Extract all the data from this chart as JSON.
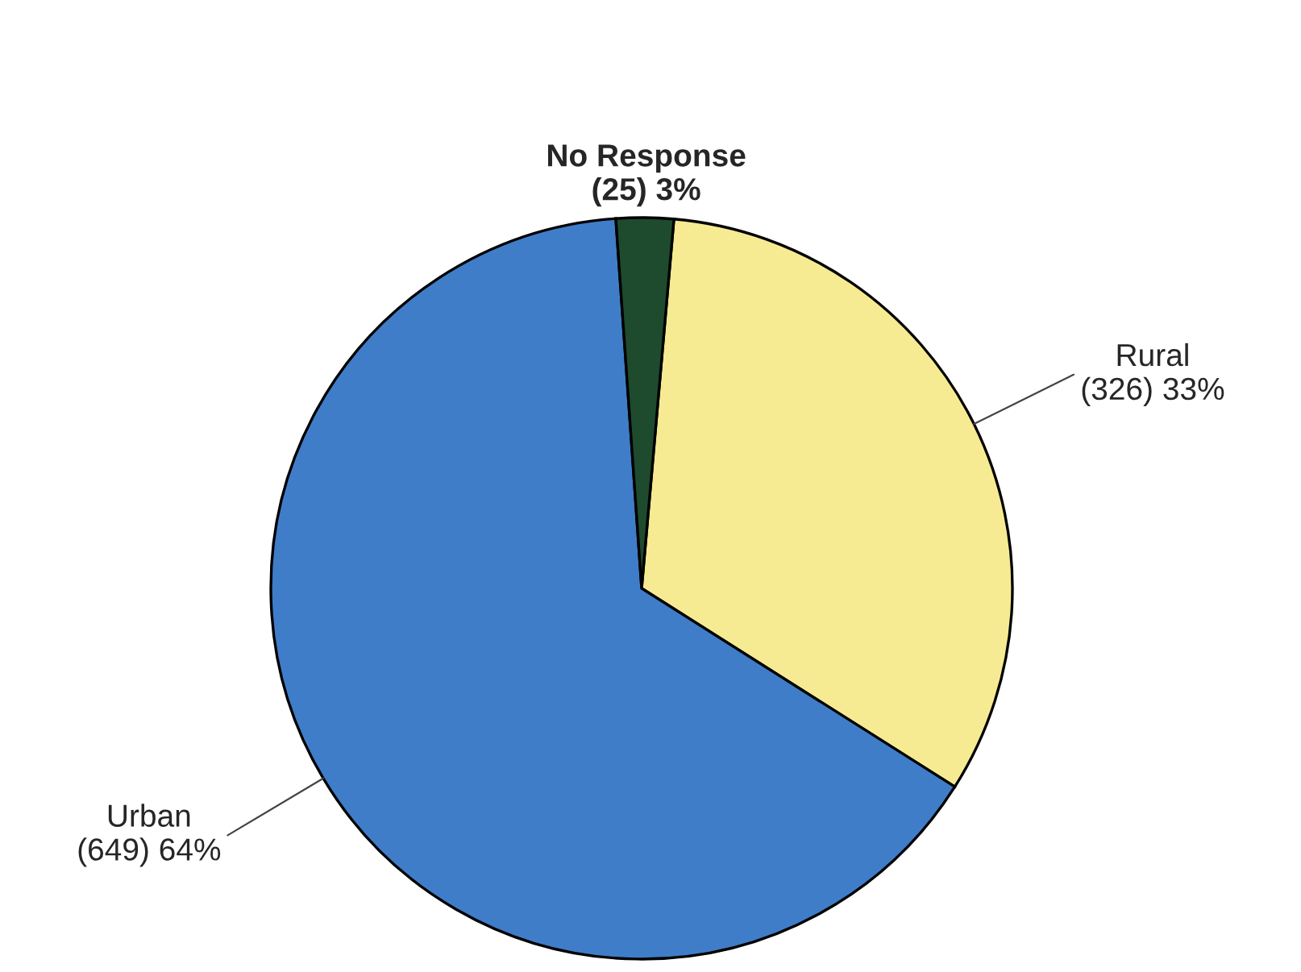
{
  "chart_data": {
    "type": "pie",
    "categories": [
      "Rural",
      "Urban",
      "No Response"
    ],
    "values": [
      326,
      649,
      25
    ],
    "value_labels": [
      "(326) 33%",
      "(649) 64%",
      "(25) 3%"
    ],
    "colors": [
      "#f6eb92",
      "#3f7dc8",
      "#1e4a2e"
    ],
    "legend": false
  }
}
